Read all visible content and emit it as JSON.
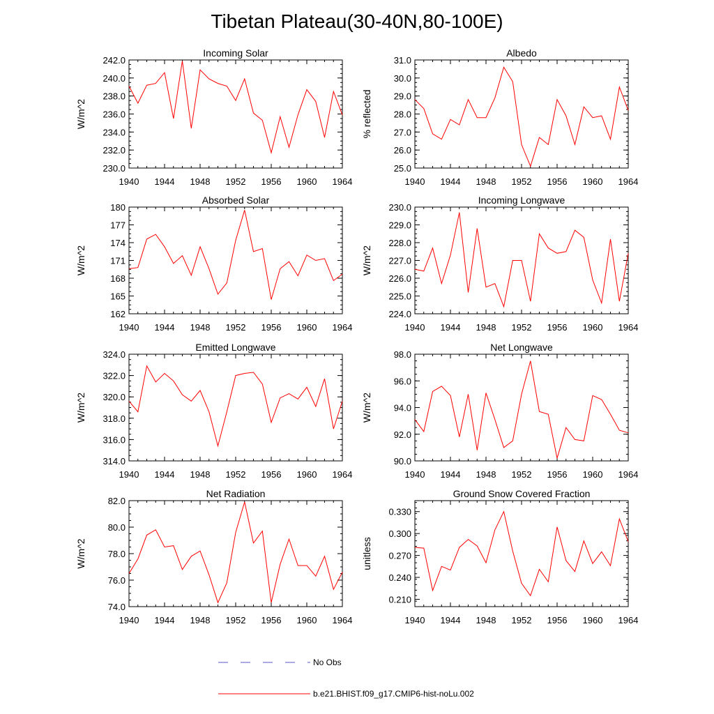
{
  "figure_title": "Tibetan Plateau(30-40N,80-100E)",
  "chart_data": [
    {
      "type": "line",
      "title": "Incoming Solar",
      "ylabel": "W/m^2",
      "x": [
        1940,
        1941,
        1942,
        1943,
        1944,
        1945,
        1946,
        1947,
        1948,
        1949,
        1950,
        1951,
        1952,
        1953,
        1954,
        1955,
        1956,
        1957,
        1958,
        1959,
        1960,
        1961,
        1962,
        1963,
        1964
      ],
      "series": [
        {
          "values": [
            239.1,
            237.2,
            239.2,
            239.4,
            240.6,
            235.5,
            241.9,
            234.4,
            240.9,
            239.9,
            239.4,
            239.1,
            237.5,
            239.9,
            236.1,
            235.3,
            231.7,
            235.7,
            232.3,
            235.9,
            238.7,
            237.4,
            233.4,
            238.5,
            235.9
          ]
        }
      ],
      "xlim": [
        1940,
        1964
      ],
      "ylim": [
        230,
        242
      ],
      "xticks": [
        "1940",
        "1944",
        "1948",
        "1952",
        "1956",
        "1960",
        "1964"
      ],
      "yticks": [
        "230.0",
        "232.0",
        "234.0",
        "236.0",
        "238.0",
        "240.0",
        "242.0"
      ]
    },
    {
      "type": "line",
      "title": "Albedo",
      "ylabel": "% reflected",
      "x": [
        1940,
        1941,
        1942,
        1943,
        1944,
        1945,
        1946,
        1947,
        1948,
        1949,
        1950,
        1951,
        1952,
        1953,
        1954,
        1955,
        1956,
        1957,
        1958,
        1959,
        1960,
        1961,
        1962,
        1963,
        1964
      ],
      "series": [
        {
          "values": [
            28.8,
            28.3,
            26.9,
            26.6,
            27.7,
            27.4,
            28.8,
            27.8,
            27.8,
            28.9,
            30.6,
            29.8,
            26.3,
            25.1,
            26.7,
            26.3,
            28.8,
            27.9,
            26.3,
            28.4,
            27.8,
            27.9,
            26.6,
            29.5,
            28.2
          ]
        }
      ],
      "xlim": [
        1940,
        1964
      ],
      "ylim": [
        25,
        31
      ],
      "xticks": [
        "1940",
        "1944",
        "1948",
        "1952",
        "1956",
        "1960",
        "1964"
      ],
      "yticks": [
        "25.0",
        "26.0",
        "27.0",
        "28.0",
        "29.0",
        "30.0",
        "31.0"
      ]
    },
    {
      "type": "line",
      "title": "Absorbed Solar",
      "ylabel": "W/m^2",
      "x": [
        1940,
        1941,
        1942,
        1943,
        1944,
        1945,
        1946,
        1947,
        1948,
        1949,
        1950,
        1951,
        1952,
        1953,
        1954,
        1955,
        1956,
        1957,
        1958,
        1959,
        1960,
        1961,
        1962,
        1963,
        1964
      ],
      "series": [
        {
          "values": [
            169.6,
            169.8,
            174.6,
            175.4,
            173.3,
            170.5,
            171.8,
            168.5,
            173.3,
            169.6,
            165.3,
            167.2,
            174.4,
            179.5,
            172.5,
            173.0,
            164.4,
            169.6,
            170.8,
            168.4,
            171.9,
            171.0,
            171.3,
            167.6,
            168.7
          ]
        }
      ],
      "xlim": [
        1940,
        1964
      ],
      "ylim": [
        162,
        180
      ],
      "xticks": [
        "1940",
        "1944",
        "1948",
        "1952",
        "1956",
        "1960",
        "1964"
      ],
      "yticks": [
        "162",
        "165",
        "168",
        "171",
        "174",
        "177",
        "180"
      ]
    },
    {
      "type": "line",
      "title": "Incoming Longwave",
      "ylabel": "W/m^2",
      "x": [
        1940,
        1941,
        1942,
        1943,
        1944,
        1945,
        1946,
        1947,
        1948,
        1949,
        1950,
        1951,
        1952,
        1953,
        1954,
        1955,
        1956,
        1957,
        1958,
        1959,
        1960,
        1961,
        1962,
        1963,
        1964
      ],
      "series": [
        {
          "values": [
            226.5,
            226.4,
            227.7,
            225.7,
            227.3,
            229.7,
            225.2,
            228.8,
            225.5,
            225.7,
            224.4,
            227.0,
            227.0,
            224.7,
            228.5,
            227.7,
            227.4,
            227.5,
            228.7,
            228.3,
            225.9,
            224.6,
            228.2,
            224.7,
            227.4
          ]
        }
      ],
      "xlim": [
        1940,
        1964
      ],
      "ylim": [
        224,
        230
      ],
      "xticks": [
        "1940",
        "1944",
        "1948",
        "1952",
        "1956",
        "1960",
        "1964"
      ],
      "yticks": [
        "224.0",
        "225.0",
        "226.0",
        "227.0",
        "228.0",
        "229.0",
        "230.0"
      ]
    },
    {
      "type": "line",
      "title": "Emitted Longwave",
      "ylabel": "W/m^2",
      "x": [
        1940,
        1941,
        1942,
        1943,
        1944,
        1945,
        1946,
        1947,
        1948,
        1949,
        1950,
        1951,
        1952,
        1953,
        1954,
        1955,
        1956,
        1957,
        1958,
        1959,
        1960,
        1961,
        1962,
        1963,
        1964
      ],
      "series": [
        {
          "values": [
            319.6,
            318.6,
            322.9,
            321.4,
            322.2,
            321.5,
            320.2,
            319.6,
            320.6,
            318.6,
            315.4,
            318.6,
            322.0,
            322.2,
            322.3,
            321.2,
            317.6,
            319.9,
            320.3,
            319.8,
            320.9,
            319.1,
            321.7,
            317.0,
            319.6
          ]
        }
      ],
      "xlim": [
        1940,
        1964
      ],
      "ylim": [
        314,
        324
      ],
      "xticks": [
        "1940",
        "1944",
        "1948",
        "1952",
        "1956",
        "1960",
        "1964"
      ],
      "yticks": [
        "314.0",
        "316.0",
        "318.0",
        "320.0",
        "322.0",
        "324.0"
      ]
    },
    {
      "type": "line",
      "title": "Net Longwave",
      "ylabel": "W/m^2",
      "x": [
        1940,
        1941,
        1942,
        1943,
        1944,
        1945,
        1946,
        1947,
        1948,
        1949,
        1950,
        1951,
        1952,
        1953,
        1954,
        1955,
        1956,
        1957,
        1958,
        1959,
        1960,
        1961,
        1962,
        1963,
        1964
      ],
      "series": [
        {
          "values": [
            93.1,
            92.2,
            95.2,
            95.6,
            94.9,
            91.8,
            95.0,
            90.8,
            95.1,
            93.1,
            91.0,
            91.5,
            95.0,
            97.5,
            93.7,
            93.5,
            90.2,
            92.5,
            91.6,
            91.5,
            94.9,
            94.6,
            93.5,
            92.3,
            92.1
          ]
        }
      ],
      "xlim": [
        1940,
        1964
      ],
      "ylim": [
        90,
        98
      ],
      "xticks": [
        "1940",
        "1944",
        "1948",
        "1952",
        "1956",
        "1960",
        "1964"
      ],
      "yticks": [
        "90.0",
        "92.0",
        "94.0",
        "96.0",
        "98.0"
      ]
    },
    {
      "type": "line",
      "title": "Net Radiation",
      "ylabel": "W/m^2",
      "x": [
        1940,
        1941,
        1942,
        1943,
        1944,
        1945,
        1946,
        1947,
        1948,
        1949,
        1950,
        1951,
        1952,
        1953,
        1954,
        1955,
        1956,
        1957,
        1958,
        1959,
        1960,
        1961,
        1962,
        1963,
        1964
      ],
      "series": [
        {
          "values": [
            76.5,
            77.6,
            79.4,
            79.8,
            78.5,
            78.6,
            76.8,
            77.8,
            78.2,
            76.4,
            74.3,
            75.8,
            79.6,
            81.9,
            78.8,
            79.7,
            74.3,
            77.2,
            79.1,
            77.1,
            77.1,
            76.3,
            77.8,
            75.3,
            76.6
          ]
        }
      ],
      "xlim": [
        1940,
        1964
      ],
      "ylim": [
        74,
        82
      ],
      "xticks": [
        "1940",
        "1944",
        "1948",
        "1952",
        "1956",
        "1960",
        "1964"
      ],
      "yticks": [
        "74.0",
        "76.0",
        "78.0",
        "80.0",
        "82.0"
      ]
    },
    {
      "type": "line",
      "title": "Ground Snow Covered Fraction",
      "ylabel": "unitless",
      "x": [
        1940,
        1941,
        1942,
        1943,
        1944,
        1945,
        1946,
        1947,
        1948,
        1949,
        1950,
        1951,
        1952,
        1953,
        1954,
        1955,
        1956,
        1957,
        1958,
        1959,
        1960,
        1961,
        1962,
        1963,
        1964
      ],
      "series": [
        {
          "values": [
            0.281,
            0.28,
            0.222,
            0.255,
            0.25,
            0.281,
            0.292,
            0.283,
            0.26,
            0.305,
            0.33,
            0.276,
            0.232,
            0.215,
            0.251,
            0.234,
            0.309,
            0.263,
            0.248,
            0.29,
            0.259,
            0.275,
            0.256,
            0.32,
            0.289
          ]
        }
      ],
      "xlim": [
        1940,
        1964
      ],
      "ylim": [
        0.2,
        0.345
      ],
      "xticks": [
        "1940",
        "1944",
        "1948",
        "1952",
        "1956",
        "1960",
        "1964"
      ],
      "yticks": [
        "0.210",
        "0.240",
        "0.270",
        "0.300",
        "0.330"
      ]
    }
  ],
  "legend": [
    {
      "label": "No Obs",
      "color": "#5555cc",
      "style": "dashed"
    },
    {
      "label": "b.e21.BHIST.f09_g17.CMIP6-hist-noLu.002",
      "color": "#ff0000",
      "style": "solid"
    }
  ]
}
